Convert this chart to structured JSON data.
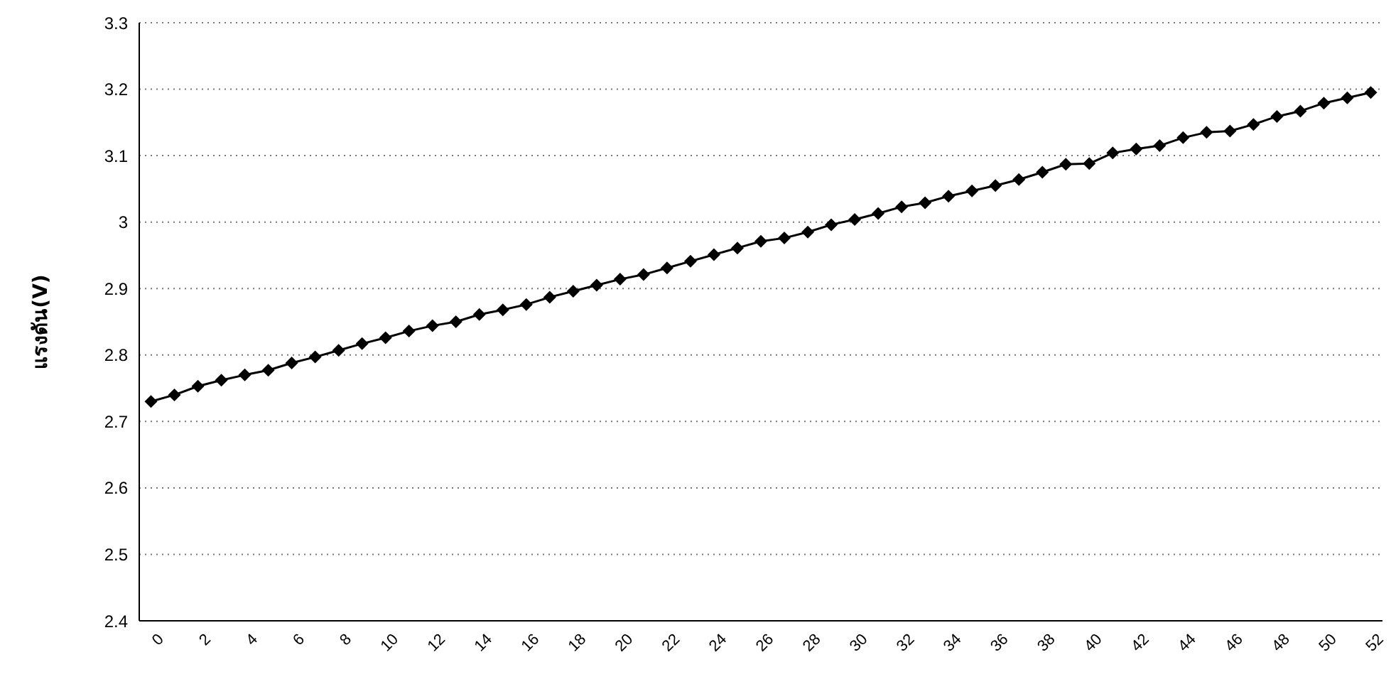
{
  "chart_data": {
    "type": "line",
    "ylabel": "แรงดัน(V)",
    "x": [
      0,
      1,
      2,
      3,
      4,
      5,
      6,
      7,
      8,
      9,
      10,
      11,
      12,
      13,
      14,
      15,
      16,
      17,
      18,
      19,
      20,
      21,
      22,
      23,
      24,
      25,
      26,
      27,
      28,
      29,
      30,
      31,
      32,
      33,
      34,
      35,
      36,
      37,
      38,
      39,
      40,
      41,
      42,
      43,
      44,
      45,
      46,
      47,
      48,
      49,
      50,
      51,
      52
    ],
    "xlim": [
      -0.5,
      52.5
    ],
    "xticks": [
      0,
      2,
      4,
      6,
      8,
      10,
      12,
      14,
      16,
      18,
      20,
      22,
      24,
      26,
      28,
      30,
      32,
      34,
      36,
      38,
      40,
      42,
      44,
      46,
      48,
      50,
      52
    ],
    "series": [
      {
        "color": "#000000",
        "values": [
          2.73,
          2.74,
          2.753,
          2.762,
          2.77,
          2.777,
          2.788,
          2.797,
          2.807,
          2.817,
          2.826,
          2.836,
          2.844,
          2.85,
          2.861,
          2.868,
          2.876,
          2.887,
          2.896,
          2.905,
          2.914,
          2.921,
          2.931,
          2.941,
          2.951,
          2.961,
          2.971,
          2.976,
          2.985,
          2.996,
          3.004,
          3.013,
          3.023,
          3.029,
          3.039,
          3.047,
          3.055,
          3.064,
          3.075,
          3.087,
          3.088,
          3.104,
          3.11,
          3.115,
          3.127,
          3.135,
          3.137,
          3.147,
          3.159,
          3.167,
          3.179,
          3.187,
          3.195
        ]
      }
    ],
    "ylim": [
      2.4,
      3.3
    ],
    "yticks": [
      2.4,
      2.5,
      2.6,
      2.7,
      2.8,
      2.9,
      3,
      3.1,
      3.2,
      3.3
    ],
    "grid": "y",
    "marker": "diamond",
    "line_style": "solid",
    "legend": false
  }
}
